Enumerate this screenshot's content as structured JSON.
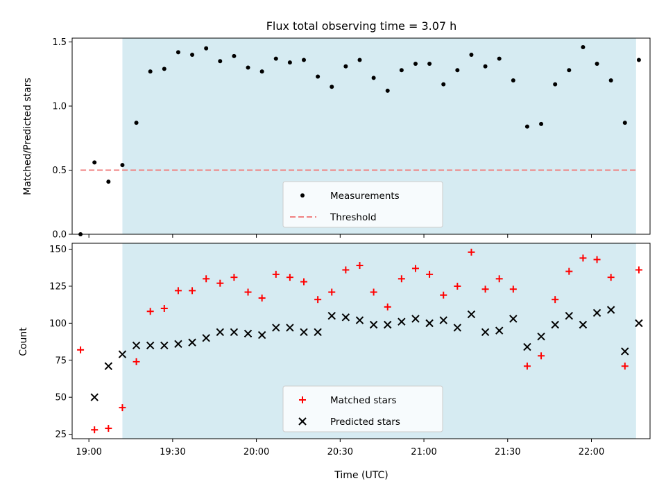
{
  "figure": {
    "title": "Flux total observing time = 3.07 h",
    "xlabel": "Time (UTC)",
    "x_tick_labels": [
      "19:00",
      "19:30",
      "20:00",
      "20:30",
      "21:00",
      "21:30",
      "22:00"
    ]
  },
  "colors": {
    "span_fill": "#add8e6",
    "measurement": "#000000",
    "threshold": "#f08080",
    "matched": "#ff0000",
    "predicted": "#000000"
  },
  "chart_data": [
    {
      "type": "scatter",
      "ylabel": "Matched/Predicted stars",
      "ylim": [
        0,
        1.53
      ],
      "yticks": [
        0.0,
        0.5,
        1.0,
        1.5
      ],
      "ytick_labels": [
        "0.0",
        "0.5",
        "1.0",
        "1.5"
      ],
      "xlim": [
        "18:54",
        "22:21"
      ],
      "xticks": [
        "19:00",
        "19:30",
        "20:00",
        "20:30",
        "21:00",
        "21:30",
        "22:00"
      ],
      "shaded_span": [
        "19:12",
        "22:16"
      ],
      "threshold": 0.5,
      "legend_loc": "lower center",
      "legend": [
        "Measurements",
        "Threshold"
      ],
      "series": [
        {
          "name": "Measurements",
          "marker": "dot",
          "x": [
            "18:57",
            "19:02",
            "19:07",
            "19:12",
            "19:17",
            "19:22",
            "19:27",
            "19:32",
            "19:37",
            "19:42",
            "19:47",
            "19:52",
            "19:57",
            "20:02",
            "20:07",
            "20:12",
            "20:17",
            "20:22",
            "20:27",
            "20:32",
            "20:37",
            "20:42",
            "20:47",
            "20:52",
            "20:57",
            "21:02",
            "21:07",
            "21:12",
            "21:17",
            "21:22",
            "21:27",
            "21:32",
            "21:37",
            "21:42",
            "21:47",
            "21:52",
            "21:57",
            "22:02",
            "22:07",
            "22:12",
            "22:17"
          ],
          "y": [
            0.0,
            0.56,
            0.41,
            0.54,
            0.87,
            1.27,
            1.29,
            1.42,
            1.4,
            1.45,
            1.35,
            1.39,
            1.3,
            1.27,
            1.37,
            1.34,
            1.36,
            1.23,
            1.15,
            1.31,
            1.36,
            1.22,
            1.12,
            1.28,
            1.33,
            1.33,
            1.17,
            1.28,
            1.4,
            1.31,
            1.37,
            1.2,
            0.84,
            0.86,
            1.17,
            1.28,
            1.46,
            1.33,
            1.2,
            0.87,
            1.36
          ]
        }
      ]
    },
    {
      "type": "scatter",
      "ylabel": "Count",
      "ylim": [
        22,
        154
      ],
      "yticks": [
        25,
        50,
        75,
        100,
        125,
        150
      ],
      "ytick_labels": [
        "25",
        "50",
        "75",
        "100",
        "125",
        "150"
      ],
      "xlim": [
        "18:54",
        "22:21"
      ],
      "xticks": [
        "19:00",
        "19:30",
        "20:00",
        "20:30",
        "21:00",
        "21:30",
        "22:00"
      ],
      "shaded_span": [
        "19:12",
        "22:16"
      ],
      "legend_loc": "lower center",
      "legend": [
        "Matched stars",
        "Predicted stars"
      ],
      "series": [
        {
          "name": "Matched stars",
          "marker": "plus",
          "x": [
            "18:57",
            "19:02",
            "19:07",
            "19:12",
            "19:17",
            "19:22",
            "19:27",
            "19:32",
            "19:37",
            "19:42",
            "19:47",
            "19:52",
            "19:57",
            "20:02",
            "20:07",
            "20:12",
            "20:17",
            "20:22",
            "20:27",
            "20:32",
            "20:37",
            "20:42",
            "20:47",
            "20:52",
            "20:57",
            "21:02",
            "21:07",
            "21:12",
            "21:17",
            "21:22",
            "21:27",
            "21:32",
            "21:37",
            "21:42",
            "21:47",
            "21:52",
            "21:57",
            "22:02",
            "22:07",
            "22:12",
            "22:17"
          ],
          "y": [
            82,
            28,
            29,
            43,
            74,
            108,
            110,
            122,
            122,
            130,
            127,
            131,
            121,
            117,
            133,
            131,
            128,
            116,
            121,
            136,
            139,
            121,
            111,
            130,
            137,
            133,
            119,
            125,
            148,
            123,
            130,
            123,
            71,
            78,
            116,
            135,
            144,
            143,
            131,
            71,
            136
          ]
        },
        {
          "name": "Predicted stars",
          "marker": "x",
          "x": [
            "19:02",
            "19:07",
            "19:12",
            "19:17",
            "19:22",
            "19:27",
            "19:32",
            "19:37",
            "19:42",
            "19:47",
            "19:52",
            "19:57",
            "20:02",
            "20:07",
            "20:12",
            "20:17",
            "20:22",
            "20:27",
            "20:32",
            "20:37",
            "20:42",
            "20:47",
            "20:52",
            "20:57",
            "21:02",
            "21:07",
            "21:12",
            "21:17",
            "21:22",
            "21:27",
            "21:32",
            "21:37",
            "21:42",
            "21:47",
            "21:52",
            "21:57",
            "22:02",
            "22:07",
            "22:12",
            "22:17"
          ],
          "y": [
            50,
            71,
            79,
            85,
            85,
            85,
            86,
            87,
            90,
            94,
            94,
            93,
            92,
            97,
            97,
            94,
            94,
            105,
            104,
            102,
            99,
            99,
            101,
            103,
            100,
            102,
            97,
            106,
            94,
            95,
            103,
            84,
            91,
            99,
            105,
            99,
            107,
            109,
            81,
            100
          ]
        }
      ]
    }
  ]
}
